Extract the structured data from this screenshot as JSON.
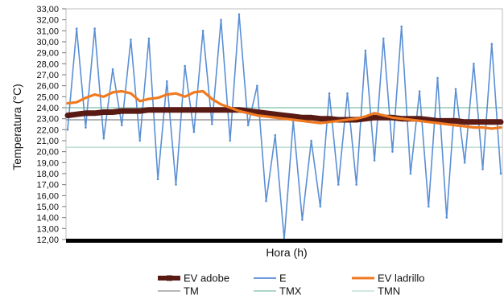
{
  "chart_data": {
    "type": "line",
    "xlabel": "Hora (h)",
    "ylabel": "Temperatura (°C)",
    "ylim": [
      12,
      33
    ],
    "y_ticks": [
      "12,00",
      "13,00",
      "14,00",
      "15,00",
      "16,00",
      "17,00",
      "18,00",
      "19,00",
      "20,00",
      "21,00",
      "22,00",
      "23,00",
      "24,00",
      "25,00",
      "26,00",
      "27,00",
      "28,00",
      "29,00",
      "30,00",
      "31,00",
      "32,00",
      "33,00"
    ],
    "x_ticks_shown": false,
    "grid": false,
    "legend_position": "bottom",
    "x_count": 49,
    "series": [
      {
        "name": "EV adobe",
        "color": "#5a1a14",
        "values": [
          23.3,
          23.4,
          23.5,
          23.5,
          23.6,
          23.6,
          23.7,
          23.7,
          23.7,
          23.8,
          23.8,
          23.8,
          23.8,
          23.8,
          23.8,
          23.8,
          23.8,
          23.8,
          23.8,
          23.8,
          23.7,
          23.6,
          23.5,
          23.4,
          23.3,
          23.2,
          23.1,
          23.1,
          23.0,
          23.0,
          22.9,
          22.9,
          22.9,
          23.0,
          23.1,
          23.1,
          23.1,
          23.0,
          23.0,
          23.0,
          22.9,
          22.8,
          22.8,
          22.8,
          22.7,
          22.7,
          22.7,
          22.7,
          22.7
        ]
      },
      {
        "name": "E",
        "color": "#5b8fd4",
        "values": [
          22.0,
          31.2,
          22.2,
          31.2,
          21.2,
          27.5,
          22.4,
          30.2,
          21.0,
          30.3,
          17.5,
          26.4,
          17.0,
          27.8,
          21.8,
          31.0,
          22.5,
          32.0,
          21.0,
          32.5,
          22.4,
          26.0,
          15.5,
          21.5,
          12.0,
          22.8,
          13.8,
          21.0,
          15.0,
          25.3,
          17.0,
          25.3,
          17.0,
          29.2,
          19.2,
          30.3,
          20.0,
          31.4,
          18.0,
          25.5,
          15.0,
          26.7,
          14.0,
          25.7,
          19.0,
          28.0,
          18.4,
          29.8,
          18.0
        ]
      },
      {
        "name": "EV ladrillo",
        "color": "#ef7a21",
        "values": [
          24.4,
          24.5,
          24.9,
          25.2,
          25.0,
          25.4,
          25.5,
          25.3,
          24.6,
          24.8,
          24.9,
          25.2,
          25.3,
          25.0,
          25.4,
          25.5,
          24.8,
          24.3,
          24.0,
          23.7,
          23.5,
          23.3,
          23.2,
          23.1,
          23.0,
          22.9,
          22.8,
          22.7,
          22.6,
          22.7,
          22.8,
          22.9,
          23.0,
          23.2,
          23.5,
          23.3,
          23.1,
          23.0,
          22.9,
          22.8,
          22.7,
          22.6,
          22.5,
          22.4,
          22.3,
          22.2,
          22.2,
          22.1,
          22.2
        ]
      },
      {
        "name": "TM",
        "color": "#8c8c8c",
        "values": [
          22.9
        ]
      },
      {
        "name": "TMX",
        "color": "#93c9b3",
        "values": [
          24.0
        ]
      },
      {
        "name": "TMN",
        "color": "#b9dccc",
        "values": [
          20.4
        ]
      }
    ]
  }
}
